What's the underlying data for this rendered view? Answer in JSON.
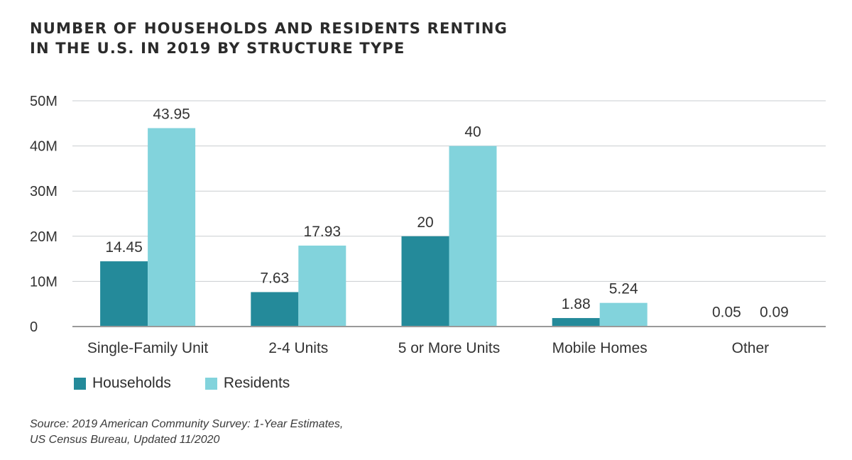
{
  "title_lines": [
    "NUMBER OF HOUSEHOLDS AND RESIDENTS RENTING",
    "IN THE U.S. IN 2019 BY STRUCTURE TYPE"
  ],
  "source_lines": [
    "Source: 2019 American Community Survey: 1-Year Estimates,",
    "US Census Bureau, Updated 11/2020"
  ],
  "colors": {
    "households": "#248a9a",
    "residents": "#82d3dc",
    "grid": "#c9cdd0",
    "axis": "#9a9a9a"
  },
  "chart_data": {
    "type": "bar",
    "title": "NUMBER OF HOUSEHOLDS AND RESIDENTS RENTING IN THE U.S. IN 2019 BY STRUCTURE TYPE",
    "categories": [
      "Single-Family Unit",
      "2-4 Units",
      "5 or More Units",
      "Mobile Homes",
      "Other"
    ],
    "series": [
      {
        "name": "Households",
        "values": [
          14.45,
          7.63,
          20,
          1.88,
          0.05
        ],
        "labels": [
          "14.45",
          "7.63",
          "20",
          "1.88",
          "0.05"
        ]
      },
      {
        "name": "Residents",
        "values": [
          43.95,
          17.93,
          40,
          5.24,
          0.09
        ],
        "labels": [
          "43.95",
          "17.93",
          "40",
          "5.24",
          "0.09"
        ]
      }
    ],
    "ylim": [
      0,
      50
    ],
    "yticks": [
      0,
      10,
      20,
      30,
      40,
      50
    ],
    "ytick_labels": [
      "0",
      "10M",
      "20M",
      "30M",
      "40M",
      "50M"
    ],
    "xlabel": "",
    "ylabel": "",
    "grid": true,
    "legend_position": "bottom-left"
  }
}
